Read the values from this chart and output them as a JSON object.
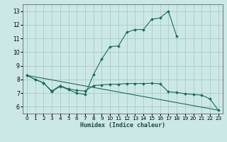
{
  "xlabel": "Humidex (Indice chaleur)",
  "bg_color": "#cce8e6",
  "grid_color": "#a8ccc8",
  "line_color": "#1a6b60",
  "xlim": [
    -0.5,
    23.5
  ],
  "ylim": [
    5.5,
    13.5
  ],
  "xticks": [
    0,
    1,
    2,
    3,
    4,
    5,
    6,
    7,
    8,
    9,
    10,
    11,
    12,
    13,
    14,
    15,
    16,
    17,
    18,
    19,
    20,
    21,
    22,
    23
  ],
  "yticks": [
    6,
    7,
    8,
    9,
    10,
    11,
    12,
    13
  ],
  "line1_x": [
    0,
    1,
    2,
    3,
    4,
    5,
    6,
    7,
    8,
    9,
    10,
    11,
    12,
    13,
    14,
    15,
    16,
    17,
    18
  ],
  "line1_y": [
    8.3,
    8.0,
    7.75,
    7.1,
    7.5,
    7.25,
    7.0,
    6.9,
    8.35,
    9.5,
    10.4,
    10.45,
    11.45,
    11.65,
    11.65,
    12.4,
    12.5,
    13.0,
    11.15
  ],
  "line2_x": [
    0,
    1,
    2,
    3,
    4,
    5,
    6,
    7,
    8,
    9,
    10,
    11,
    12,
    13,
    14,
    15,
    16,
    17,
    18,
    19,
    20,
    21,
    22,
    23
  ],
  "line2_y": [
    8.3,
    8.0,
    7.75,
    7.15,
    7.55,
    7.3,
    7.2,
    7.15,
    7.55,
    7.6,
    7.65,
    7.65,
    7.7,
    7.7,
    7.7,
    7.72,
    7.68,
    7.1,
    7.05,
    6.95,
    6.9,
    6.85,
    6.58,
    5.75
  ],
  "line3_x": [
    0,
    23
  ],
  "line3_y": [
    8.3,
    5.75
  ]
}
